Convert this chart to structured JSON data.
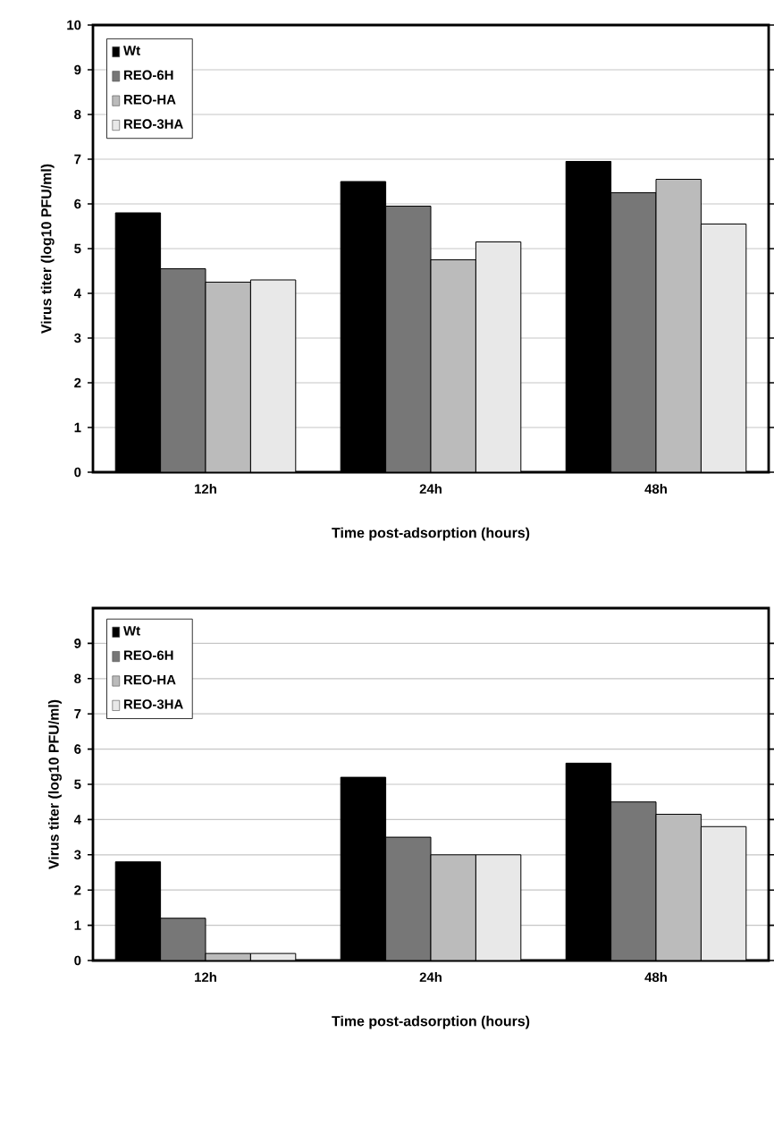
{
  "chart_data": [
    {
      "type": "bar",
      "categories": [
        "12h",
        "24h",
        "48h"
      ],
      "xlabel": "Time post-adsorption (hours)",
      "ylabel": "Virus titer (log10 PFU/ml)",
      "ylim": [
        0,
        10
      ],
      "yticks": [
        0,
        1,
        2,
        3,
        4,
        5,
        6,
        7,
        8,
        9,
        10
      ],
      "grid": "y",
      "legend": "top left",
      "series": [
        {
          "name": "Wt",
          "color": "#000000",
          "values": [
            5.8,
            6.5,
            6.95
          ]
        },
        {
          "name": "REO-6H",
          "color": "#777777",
          "values": [
            4.55,
            5.95,
            6.25
          ]
        },
        {
          "name": "REO-HA",
          "color": "#bbbbbb",
          "values": [
            4.25,
            4.75,
            6.55
          ]
        },
        {
          "name": "REO-3HA",
          "color": "#e8e8e8",
          "values": [
            4.3,
            5.15,
            5.55
          ]
        }
      ]
    },
    {
      "type": "bar",
      "categories": [
        "12h",
        "24h",
        "48h"
      ],
      "xlabel": "Time post-adsorption (hours)",
      "ylabel": "Virus titer (log10 PFU/ml)",
      "ylim": [
        0,
        10
      ],
      "yticks": [
        0,
        1,
        2,
        3,
        4,
        5,
        6,
        7,
        8,
        9
      ],
      "grid": "y",
      "legend": "top left",
      "series": [
        {
          "name": "Wt",
          "color": "#000000",
          "values": [
            2.8,
            5.2,
            5.6
          ]
        },
        {
          "name": "REO-6H",
          "color": "#777777",
          "values": [
            1.2,
            3.5,
            4.5
          ]
        },
        {
          "name": "REO-HA",
          "color": "#bbbbbb",
          "values": [
            0.2,
            3.0,
            4.15
          ]
        },
        {
          "name": "REO-3HA",
          "color": "#e8e8e8",
          "values": [
            0.2,
            3.0,
            3.8
          ]
        }
      ]
    }
  ]
}
